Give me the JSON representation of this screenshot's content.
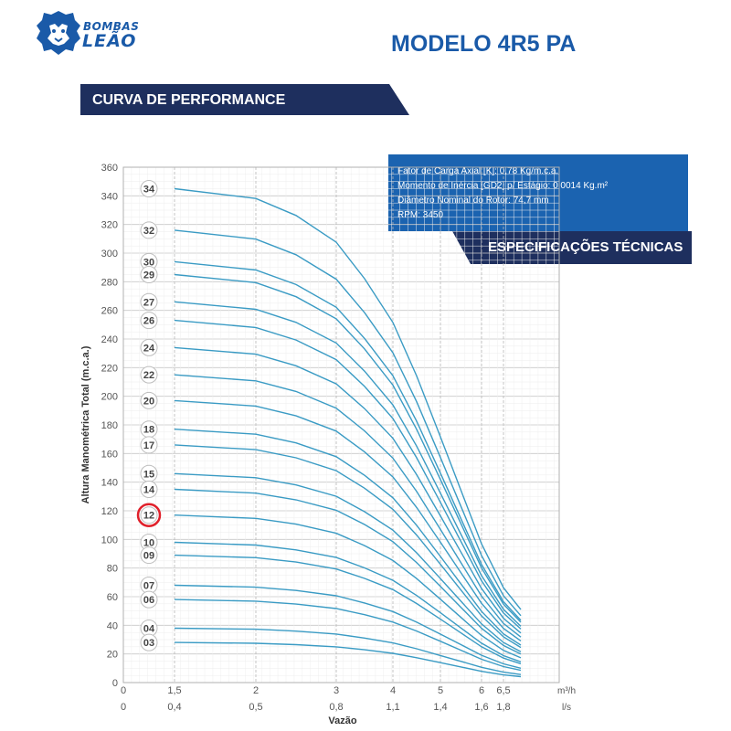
{
  "brand": {
    "line1": "BOMBAS",
    "line2": "LEÃO"
  },
  "header": {
    "model": "MODELO 4R5 PA",
    "section": "CURVA DE PERFORMANCE"
  },
  "specs": {
    "title": "ESPECIFICAÇÕES TÉCNICAS",
    "lines": [
      "Fator de Carga Axial [K]: 0,78 Kg/m.c.a.",
      "Momento de Inércia [GD2] p/ Estágio: 0,0014 Kg.m²",
      "Diâmetro Nominal do Rotor: 74,7 mm",
      "RPM: 3450"
    ]
  },
  "colors": {
    "brand_blue": "#1a5aa8",
    "banner_dark": "#1e2f5e",
    "curve": "#3a9bc4",
    "highlight": "#e0202a"
  },
  "chart_data": {
    "type": "line",
    "ylabel": "Altura Manométrica Total (m.c.a.)",
    "xlabel": "Vazão",
    "ylim": [
      0,
      360
    ],
    "y_ticks": [
      0,
      20,
      40,
      60,
      80,
      100,
      120,
      140,
      160,
      180,
      200,
      220,
      240,
      260,
      280,
      300,
      320,
      340,
      360
    ],
    "x_ticks_m3h": [
      "0",
      "1,5",
      "2",
      "3",
      "4",
      "5",
      "6",
      "6,5"
    ],
    "x_ticks_ls": [
      "0",
      "0,4",
      "0,5",
      "0,8",
      "1,1",
      "1,4",
      "1,6",
      "1,8"
    ],
    "x_values_m3h": [
      0,
      1.5,
      2,
      3,
      4,
      5,
      6,
      6.5
    ],
    "unit_m3h": "m³/h",
    "unit_ls": "l/s",
    "x_range_m3h": [
      1.5,
      6.75
    ],
    "highlighted_stage": "12",
    "curve_x": [
      1.5,
      2,
      2.5,
      3,
      3.5,
      4,
      4.5,
      5,
      5.5,
      6,
      6.5,
      6.75
    ],
    "head_per_stage": [
      10.15,
      9.95,
      9.6,
      9.05,
      8.3,
      7.4,
      6.3,
      5.05,
      3.95,
      2.85,
      1.95,
      1.5
    ],
    "series": [
      {
        "name": "34",
        "y_at_1_5": 345
      },
      {
        "name": "32",
        "y_at_1_5": 316
      },
      {
        "name": "30",
        "y_at_1_5": 294
      },
      {
        "name": "29",
        "y_at_1_5": 285
      },
      {
        "name": "27",
        "y_at_1_5": 266
      },
      {
        "name": "26",
        "y_at_1_5": 253
      },
      {
        "name": "24",
        "y_at_1_5": 234
      },
      {
        "name": "22",
        "y_at_1_5": 215
      },
      {
        "name": "20",
        "y_at_1_5": 197
      },
      {
        "name": "18",
        "y_at_1_5": 177
      },
      {
        "name": "17",
        "y_at_1_5": 166
      },
      {
        "name": "15",
        "y_at_1_5": 146
      },
      {
        "name": "14",
        "y_at_1_5": 135
      },
      {
        "name": "12",
        "y_at_1_5": 117
      },
      {
        "name": "10",
        "y_at_1_5": 98
      },
      {
        "name": "09",
        "y_at_1_5": 89
      },
      {
        "name": "07",
        "y_at_1_5": 68
      },
      {
        "name": "06",
        "y_at_1_5": 58
      },
      {
        "name": "04",
        "y_at_1_5": 38
      },
      {
        "name": "03",
        "y_at_1_5": 28
      }
    ]
  }
}
